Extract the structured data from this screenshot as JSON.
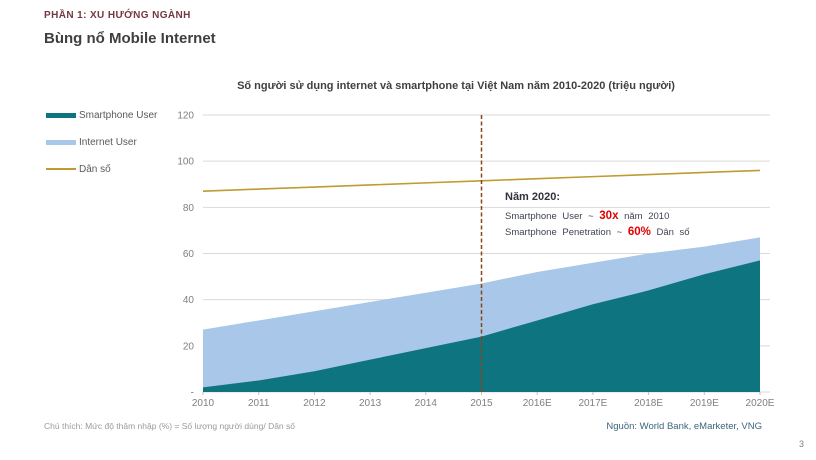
{
  "slide": {
    "kicker": "PHẦN 1: XU HƯỚNG NGÀNH",
    "title": "Bùng nổ Mobile Internet",
    "page_number": "3"
  },
  "chart_data": {
    "type": "area",
    "title": "Số người sử dụng internet và smartphone tại Việt Nam năm 2010-2020 (triệu người)",
    "categories": [
      "2010",
      "2011",
      "2012",
      "2013",
      "2014",
      "2015",
      "2016E",
      "2017E",
      "2018E",
      "2019E",
      "2020E"
    ],
    "series": [
      {
        "name": "Internet User",
        "kind": "area",
        "color": "#a9c7e9",
        "values": [
          27,
          31,
          35,
          39,
          43,
          47,
          52,
          56,
          60,
          63,
          67
        ]
      },
      {
        "name": "Smartphone User",
        "kind": "area",
        "color": "#0e7480",
        "values": [
          2,
          5,
          9,
          14,
          19,
          24,
          31,
          38,
          44,
          51,
          57
        ]
      },
      {
        "name": "Dân số",
        "kind": "line",
        "color": "#bf9b30",
        "values": [
          87,
          87.9,
          88.8,
          89.7,
          90.6,
          91.5,
          92.4,
          93.3,
          94.2,
          95.1,
          96
        ]
      }
    ],
    "legend": [
      {
        "label": "Smartphone User",
        "color": "#0e7480",
        "type": "area"
      },
      {
        "label": "Internet User",
        "color": "#a9c7e9",
        "type": "area"
      },
      {
        "label": "Dân số",
        "color": "#bf9b30",
        "type": "line"
      }
    ],
    "ylim": [
      0,
      120
    ],
    "yticks": [
      {
        "value": 0,
        "label": "-"
      },
      {
        "value": 20,
        "label": "20"
      },
      {
        "value": 40,
        "label": "40"
      },
      {
        "value": 60,
        "label": "60"
      },
      {
        "value": 80,
        "label": "80"
      },
      {
        "value": 100,
        "label": "100"
      },
      {
        "value": 120,
        "label": "120"
      }
    ],
    "grid": true,
    "legend_position": "left",
    "vline": {
      "x": "2015",
      "color": "#8a4613",
      "style": "dashed"
    },
    "colors": {
      "grid": "#d9d9d9",
      "axis_text": "#7f7f7f",
      "tick": "#bfbfbf"
    }
  },
  "annotation": {
    "heading": "Năm 2020:",
    "line1_prefix": "Smartphone User ~",
    "line1_value": "30x",
    "line1_suffix": "năm 2010",
    "line2_prefix": "Smartphone Penetration ~",
    "line2_value": "60%",
    "line2_suffix": "Dân số"
  },
  "footer": {
    "note": "Chú thích: Mức độ thâm nhập (%) = Số lượng người dùng/ Dân số",
    "source": "Nguồn: World Bank, eMarketer, VNG"
  }
}
